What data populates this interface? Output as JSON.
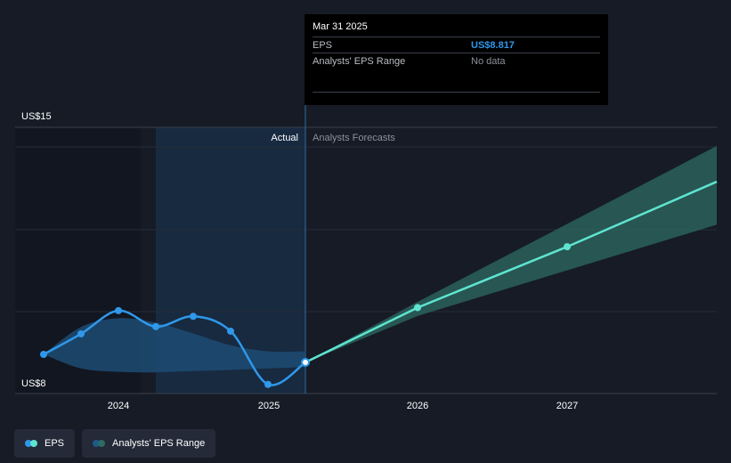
{
  "tooltip": {
    "date": "Mar 31 2025",
    "rows": [
      {
        "label": "EPS",
        "value": "US$8.817"
      },
      {
        "label": "Analysts' EPS Range",
        "value": "No data"
      }
    ]
  },
  "regions": {
    "actual": "Actual",
    "forecast": "Analysts Forecasts"
  },
  "legend": {
    "eps": "EPS",
    "range": "Analysts' EPS Range"
  },
  "colors": {
    "background": "#161b26",
    "eps_line": "#2f98ea",
    "forecast_line": "#5fe4d0",
    "forecast_band": "#2e6b63",
    "actual_band": "#1d4b73",
    "tooltip_eps": "#2f98ea"
  },
  "chart_data": {
    "type": "line",
    "y_axis": {
      "labels": [
        "US$15",
        "US$8"
      ],
      "ylim": [
        8,
        15
      ]
    },
    "x_axis": {
      "ticks": [
        "2024",
        "2025",
        "2026",
        "2027"
      ]
    },
    "series": [
      {
        "name": "EPS",
        "points": [
          {
            "x": 2023.5,
            "y": 9.03
          },
          {
            "x": 2023.75,
            "y": 9.57
          },
          {
            "x": 2024.0,
            "y": 10.18
          },
          {
            "x": 2024.25,
            "y": 9.76
          },
          {
            "x": 2024.5,
            "y": 10.03
          },
          {
            "x": 2024.75,
            "y": 9.64
          },
          {
            "x": 2025.0,
            "y": 8.24
          },
          {
            "x": 2025.25,
            "y": 8.82
          }
        ]
      },
      {
        "name": "Forecast",
        "points": [
          {
            "x": 2025.25,
            "y": 8.82
          },
          {
            "x": 2026.0,
            "y": 10.26
          },
          {
            "x": 2027.0,
            "y": 11.86
          },
          {
            "x": 2028.0,
            "y": 13.57
          }
        ]
      }
    ],
    "bands": [
      {
        "name": "Actual EPS range",
        "upper": [
          {
            "x": 2023.5,
            "y": 9.03
          },
          {
            "x": 2023.75,
            "y": 9.75
          },
          {
            "x": 2024.0,
            "y": 9.98
          },
          {
            "x": 2024.25,
            "y": 9.86
          },
          {
            "x": 2024.5,
            "y": 9.58
          },
          {
            "x": 2024.75,
            "y": 9.27
          },
          {
            "x": 2025.0,
            "y": 9.11
          },
          {
            "x": 2025.25,
            "y": 9.11
          }
        ],
        "lower": [
          {
            "x": 2023.5,
            "y": 9.03
          },
          {
            "x": 2023.75,
            "y": 8.66
          },
          {
            "x": 2024.0,
            "y": 8.57
          },
          {
            "x": 2024.25,
            "y": 8.56
          },
          {
            "x": 2024.5,
            "y": 8.59
          },
          {
            "x": 2024.75,
            "y": 8.62
          },
          {
            "x": 2025.0,
            "y": 8.66
          },
          {
            "x": 2025.25,
            "y": 8.7
          }
        ]
      },
      {
        "name": "Analysts' EPS Range",
        "upper": [
          {
            "x": 2025.25,
            "y": 8.82
          },
          {
            "x": 2026.0,
            "y": 10.41
          },
          {
            "x": 2028.0,
            "y": 14.51
          }
        ],
        "lower": [
          {
            "x": 2025.25,
            "y": 8.82
          },
          {
            "x": 2026.0,
            "y": 10.04
          },
          {
            "x": 2028.0,
            "y": 12.44
          }
        ]
      }
    ],
    "highlight": {
      "x": 2025.25,
      "y": 8.82
    }
  }
}
